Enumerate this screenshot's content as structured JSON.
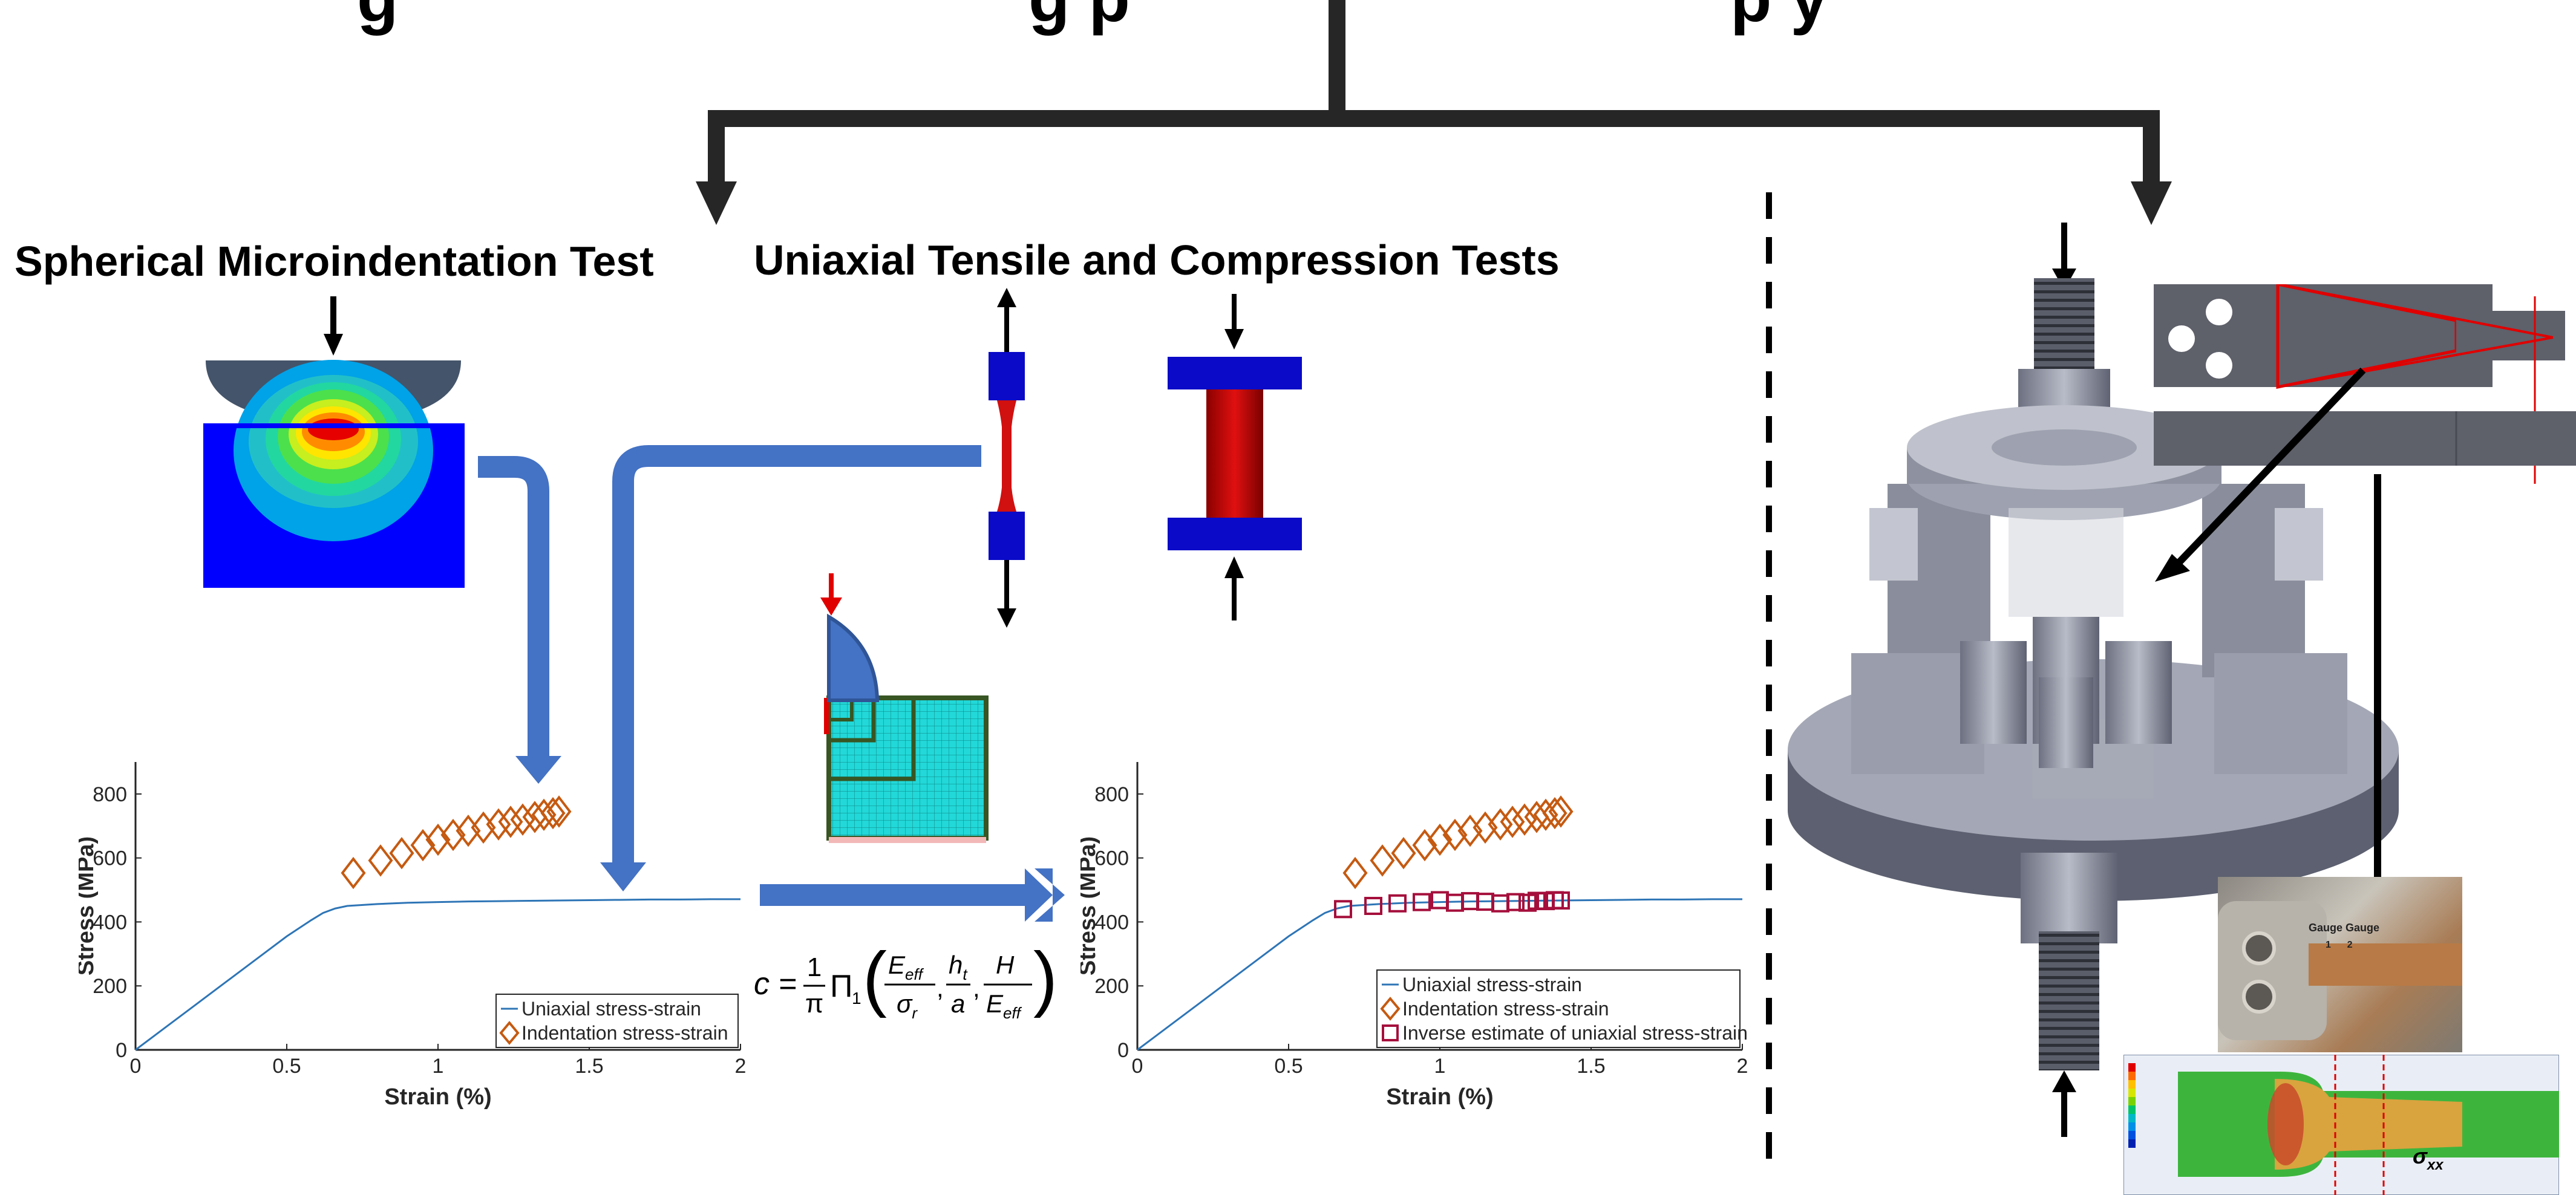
{
  "header": {
    "title_fragment_left": "g",
    "title_fragment_center": "g p",
    "title_fragment_right": "p y"
  },
  "sections": {
    "microindentation": "Spherical Microindentation Test",
    "tensile_compression": "Uniaxial Tensile and Compression Tests"
  },
  "formula": {
    "lhs": "c =",
    "frac_num": "1",
    "frac_den": "π",
    "func": "Π",
    "func_sub": "1",
    "arg1_num": "E",
    "arg1_num_sub": "eff",
    "arg1_den": "σ",
    "arg1_den_sub": "r",
    "arg2_num": "h",
    "arg2_num_sub": "t",
    "arg2_den": "a",
    "arg3_num": "H",
    "arg3_den": "E",
    "arg3_den_sub": "eff",
    "separator": ","
  },
  "photo": {
    "gauge_label": "Gauge  Gauge",
    "gauge_numbers": "1      2",
    "sigma_label": "σ",
    "sigma_sub": "xx"
  },
  "chart_data": [
    {
      "type": "line",
      "xlabel": "Strain (%)",
      "ylabel": "Stress (MPa)",
      "xlim": [
        0,
        2
      ],
      "ylim": [
        0,
        900
      ],
      "xticks": [
        "0",
        "0.5",
        "1",
        "1.5",
        "2"
      ],
      "yticks": [
        "0",
        "200",
        "400",
        "600",
        "800"
      ],
      "series": [
        {
          "name": "Uniaxial stress-strain",
          "style": "line",
          "color": "#2E75B6",
          "x": [
            0,
            0.1,
            0.2,
            0.3,
            0.4,
            0.5,
            0.58,
            0.62,
            0.66,
            0.7,
            0.8,
            0.9,
            1.0,
            1.1,
            1.2,
            1.3,
            1.4,
            1.5,
            1.6,
            1.7,
            1.8,
            1.9,
            2.0
          ],
          "y": [
            0,
            71,
            142,
            213,
            284,
            355,
            405,
            428,
            442,
            450,
            456,
            460,
            462,
            464,
            465,
            466,
            467,
            468,
            469,
            470,
            470,
            471,
            471
          ]
        },
        {
          "name": "Indentation stress-strain",
          "style": "diamond",
          "color": "#C55A11",
          "x": [
            0.72,
            0.81,
            0.88,
            0.95,
            1.0,
            1.05,
            1.1,
            1.15,
            1.2,
            1.24,
            1.28,
            1.32,
            1.35,
            1.38,
            1.4
          ],
          "y": [
            553,
            592,
            615,
            640,
            657,
            672,
            685,
            695,
            705,
            713,
            720,
            728,
            735,
            740,
            745
          ]
        }
      ],
      "legend": "bottom-right"
    },
    {
      "type": "line",
      "xlabel": "Strain (%)",
      "ylabel": "Stress (MPa)",
      "xlim": [
        0,
        2
      ],
      "ylim": [
        0,
        900
      ],
      "xticks": [
        "0",
        "0.5",
        "1",
        "1.5",
        "2"
      ],
      "yticks": [
        "0",
        "200",
        "400",
        "600",
        "800"
      ],
      "series": [
        {
          "name": "Uniaxial stress-strain",
          "style": "line",
          "color": "#2E75B6",
          "x": [
            0,
            0.1,
            0.2,
            0.3,
            0.4,
            0.5,
            0.58,
            0.62,
            0.66,
            0.7,
            0.8,
            0.9,
            1.0,
            1.1,
            1.2,
            1.3,
            1.4,
            1.5,
            1.6,
            1.7,
            1.8,
            1.9,
            2.0
          ],
          "y": [
            0,
            71,
            142,
            213,
            284,
            355,
            405,
            428,
            442,
            450,
            456,
            460,
            462,
            464,
            465,
            466,
            467,
            468,
            469,
            470,
            470,
            471,
            471
          ]
        },
        {
          "name": "Indentation stress-strain",
          "style": "diamond",
          "color": "#C55A11",
          "x": [
            0.72,
            0.81,
            0.88,
            0.95,
            1.0,
            1.05,
            1.1,
            1.15,
            1.2,
            1.24,
            1.28,
            1.32,
            1.35,
            1.38,
            1.4
          ],
          "y": [
            553,
            592,
            615,
            640,
            657,
            672,
            685,
            695,
            705,
            713,
            720,
            728,
            735,
            740,
            745
          ]
        },
        {
          "name": "Inverse estimate of uniaxial stress-strain",
          "style": "square",
          "color": "#A50F3C",
          "x": [
            0.68,
            0.78,
            0.86,
            0.94,
            1.0,
            1.05,
            1.1,
            1.15,
            1.2,
            1.25,
            1.29,
            1.32,
            1.35,
            1.38,
            1.4
          ],
          "y": [
            440,
            450,
            458,
            462,
            468,
            460,
            465,
            463,
            458,
            462,
            460,
            466,
            465,
            468,
            467
          ]
        }
      ],
      "legend": "bottom-right"
    }
  ]
}
